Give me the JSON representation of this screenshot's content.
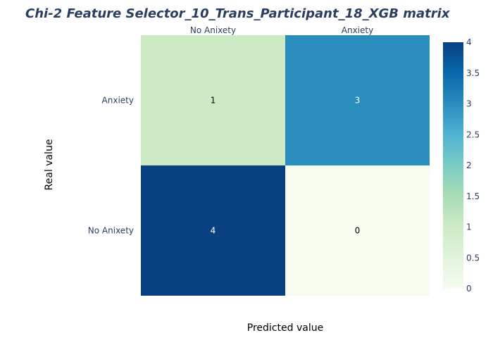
{
  "chart_data": {
    "type": "heatmap",
    "title": "Chi-2 Feature Selector_10_Trans_Participant_18_XGB matrix",
    "xlabel": "Predicted value",
    "ylabel": "Real value",
    "x_categories": [
      "No Anixety",
      "Anxiety"
    ],
    "y_categories": [
      "Anxiety",
      "No Anixety"
    ],
    "values": [
      [
        1,
        3
      ],
      [
        4,
        0
      ]
    ],
    "x_axis_side": "top",
    "colorscale": "GnBu",
    "zmin": 0,
    "zmax": 4,
    "colorbar_ticks": [
      "0",
      "0.5",
      "1",
      "1.5",
      "2",
      "2.5",
      "3",
      "3.5",
      "4"
    ],
    "colorbar_placement": "right"
  }
}
